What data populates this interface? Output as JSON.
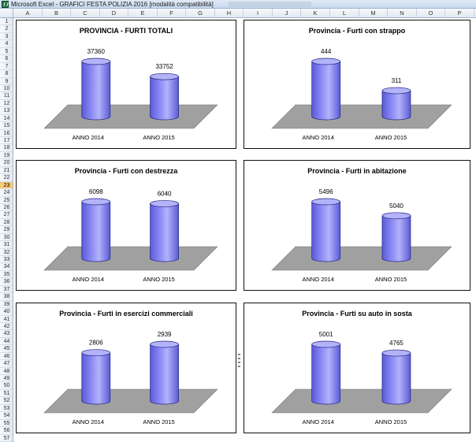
{
  "window": {
    "title": "Microsoft Excel - GRAFICI FESTA POLIZIA 2016  [modalità compatibilità]"
  },
  "columns": [
    "A",
    "B",
    "C",
    "D",
    "E",
    "F",
    "G",
    "H",
    "I",
    "J",
    "K",
    "L",
    "M",
    "N",
    "O",
    "P"
  ],
  "rows": [
    "1",
    "2",
    "3",
    "4",
    "5",
    "6",
    "7",
    "8",
    "9",
    "10",
    "11",
    "12",
    "13",
    "14",
    "15",
    "16",
    "17",
    "18",
    "19",
    "20",
    "21",
    "22",
    "23",
    "24",
    "25",
    "26",
    "27",
    "28",
    "29",
    "30",
    "31",
    "32",
    "33",
    "34",
    "35",
    "36",
    "37",
    "38",
    "39",
    "40",
    "41",
    "42",
    "43",
    "44",
    "45",
    "46",
    "47",
    "48",
    "49",
    "50",
    "51",
    "52",
    "53",
    "54",
    "55",
    "56",
    "57"
  ],
  "selected_row": "23",
  "colors": {
    "bar": "#8c8cf5",
    "bar_dark": "#5a5ad8",
    "bar_top": "#b3b3fa",
    "floor": "#a0a0a0"
  },
  "chart_data": [
    {
      "type": "bar",
      "title": "PROVINCIA - FURTI TOTALI",
      "categories": [
        "ANNO 2014",
        "ANNO 2015"
      ],
      "values": [
        37360,
        33752
      ],
      "labels": [
        "37360",
        "33752"
      ]
    },
    {
      "type": "bar",
      "title": "Provincia - Furti con strappo",
      "categories": [
        "ANNO 2014",
        "ANNO 2015"
      ],
      "values": [
        444,
        311
      ],
      "labels": [
        "444",
        "311"
      ]
    },
    {
      "type": "bar",
      "title": "Provincia - Furti con destrezza",
      "categories": [
        "ANNO 2014",
        "ANNO 2015"
      ],
      "values": [
        6098,
        6040
      ],
      "labels": [
        "6098",
        "6040"
      ]
    },
    {
      "type": "bar",
      "title": "Provincia - Furti in abitazione",
      "categories": [
        "ANNO 2014",
        "ANNO 2015"
      ],
      "values": [
        5496,
        5040
      ],
      "labels": [
        "5496",
        "5040"
      ]
    },
    {
      "type": "bar",
      "title": "Provincia - Furti in esercizi commerciali",
      "categories": [
        "ANNO 2014",
        "ANNO 2015"
      ],
      "values": [
        2806,
        2939
      ],
      "labels": [
        "2806",
        "2939"
      ]
    },
    {
      "type": "bar",
      "title": "Provincia - Furti su auto in sosta",
      "categories": [
        "ANNO 2014",
        "ANNO 2015"
      ],
      "values": [
        5001,
        4765
      ],
      "labels": [
        "5001",
        "4765"
      ]
    }
  ]
}
